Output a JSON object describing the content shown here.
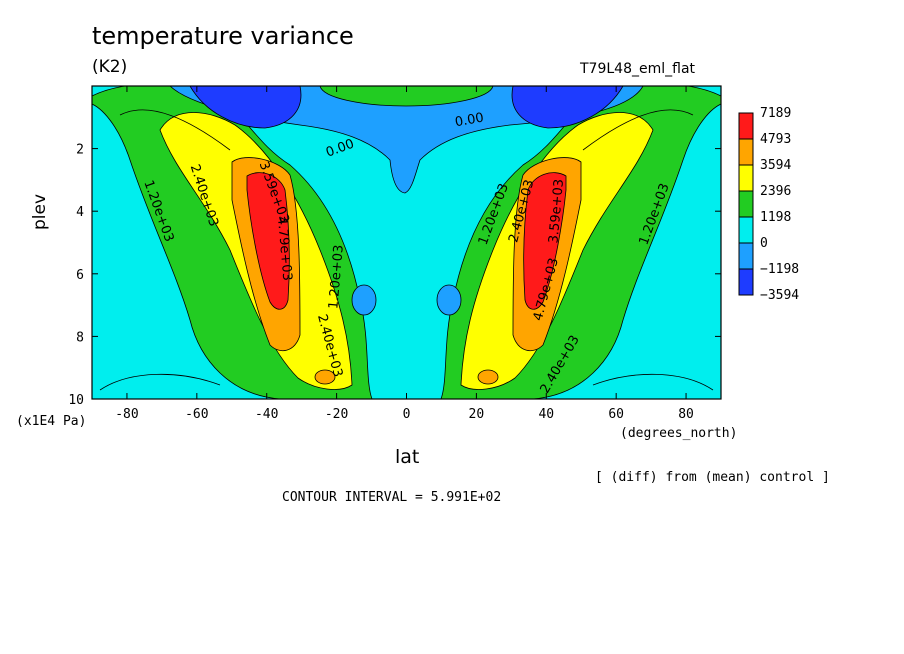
{
  "title": "temperature variance",
  "units": "(K2)",
  "run_label": "T79L48_eml_flat",
  "note": "[ (diff) from (mean) control ]",
  "contour_interval": "CONTOUR INTERVAL = 5.991E+02",
  "chart_data": {
    "type": "heatmap",
    "title": "temperature variance",
    "xlabel": "lat",
    "ylabel": "plev",
    "x_units": "(degrees_north)",
    "y_units": "(x1E4 Pa)",
    "xlim": [
      -90,
      90
    ],
    "ylim": [
      10,
      0
    ],
    "x_ticks": [
      "-80",
      "-60",
      "-40",
      "-20",
      "0",
      "20",
      "40",
      "60",
      "80"
    ],
    "x_tick_values": [
      -80,
      -60,
      -40,
      -20,
      0,
      20,
      40,
      60,
      80
    ],
    "y_ticks": [
      "2",
      "4",
      "6",
      "8",
      "10"
    ],
    "y_tick_values": [
      2,
      4,
      6,
      8,
      10
    ],
    "colorbar": {
      "labels": [
        "7189",
        "4793",
        "3594",
        "2396",
        "1198",
        "0",
        "−1198",
        "−3594"
      ],
      "colors": [
        "#ff1a1a",
        "#ffa500",
        "#ffff00",
        "#22cc22",
        "#00eeee",
        "#1ea0ff",
        "#1e3cff"
      ]
    },
    "contour_labels": [
      {
        "text": "1.20e+03",
        "lat": -71,
        "plev": 4.0,
        "angle": 70
      },
      {
        "text": "2.40e+03",
        "lat": -58,
        "plev": 3.5,
        "angle": 72
      },
      {
        "text": "3.59e+03",
        "lat": -38,
        "plev": 3.4,
        "angle": 70
      },
      {
        "text": "4.79e+03",
        "lat": -35,
        "plev": 5.2,
        "angle": 85
      },
      {
        "text": "1.20e+03",
        "lat": -20,
        "plev": 6.1,
        "angle": -85
      },
      {
        "text": "2.40e+03",
        "lat": -22,
        "plev": 8.3,
        "angle": 75
      },
      {
        "text": "0.00",
        "lat": -19,
        "plev": 2.0,
        "angle": -20
      },
      {
        "text": "0.00",
        "lat": 18,
        "plev": 1.1,
        "angle": -10
      },
      {
        "text": "1.20e+03",
        "lat": 25,
        "plev": 4.1,
        "angle": -70
      },
      {
        "text": "2.40e+03",
        "lat": 33,
        "plev": 4.0,
        "angle": -75
      },
      {
        "text": "3.59e+03",
        "lat": 43,
        "plev": 4.0,
        "angle": -85
      },
      {
        "text": "4.79e+03",
        "lat": 40,
        "plev": 6.5,
        "angle": -75
      },
      {
        "text": "2.40e+03",
        "lat": 44,
        "plev": 8.9,
        "angle": -60
      },
      {
        "text": "1.20e+03",
        "lat": 71,
        "plev": 4.1,
        "angle": -70
      }
    ]
  }
}
